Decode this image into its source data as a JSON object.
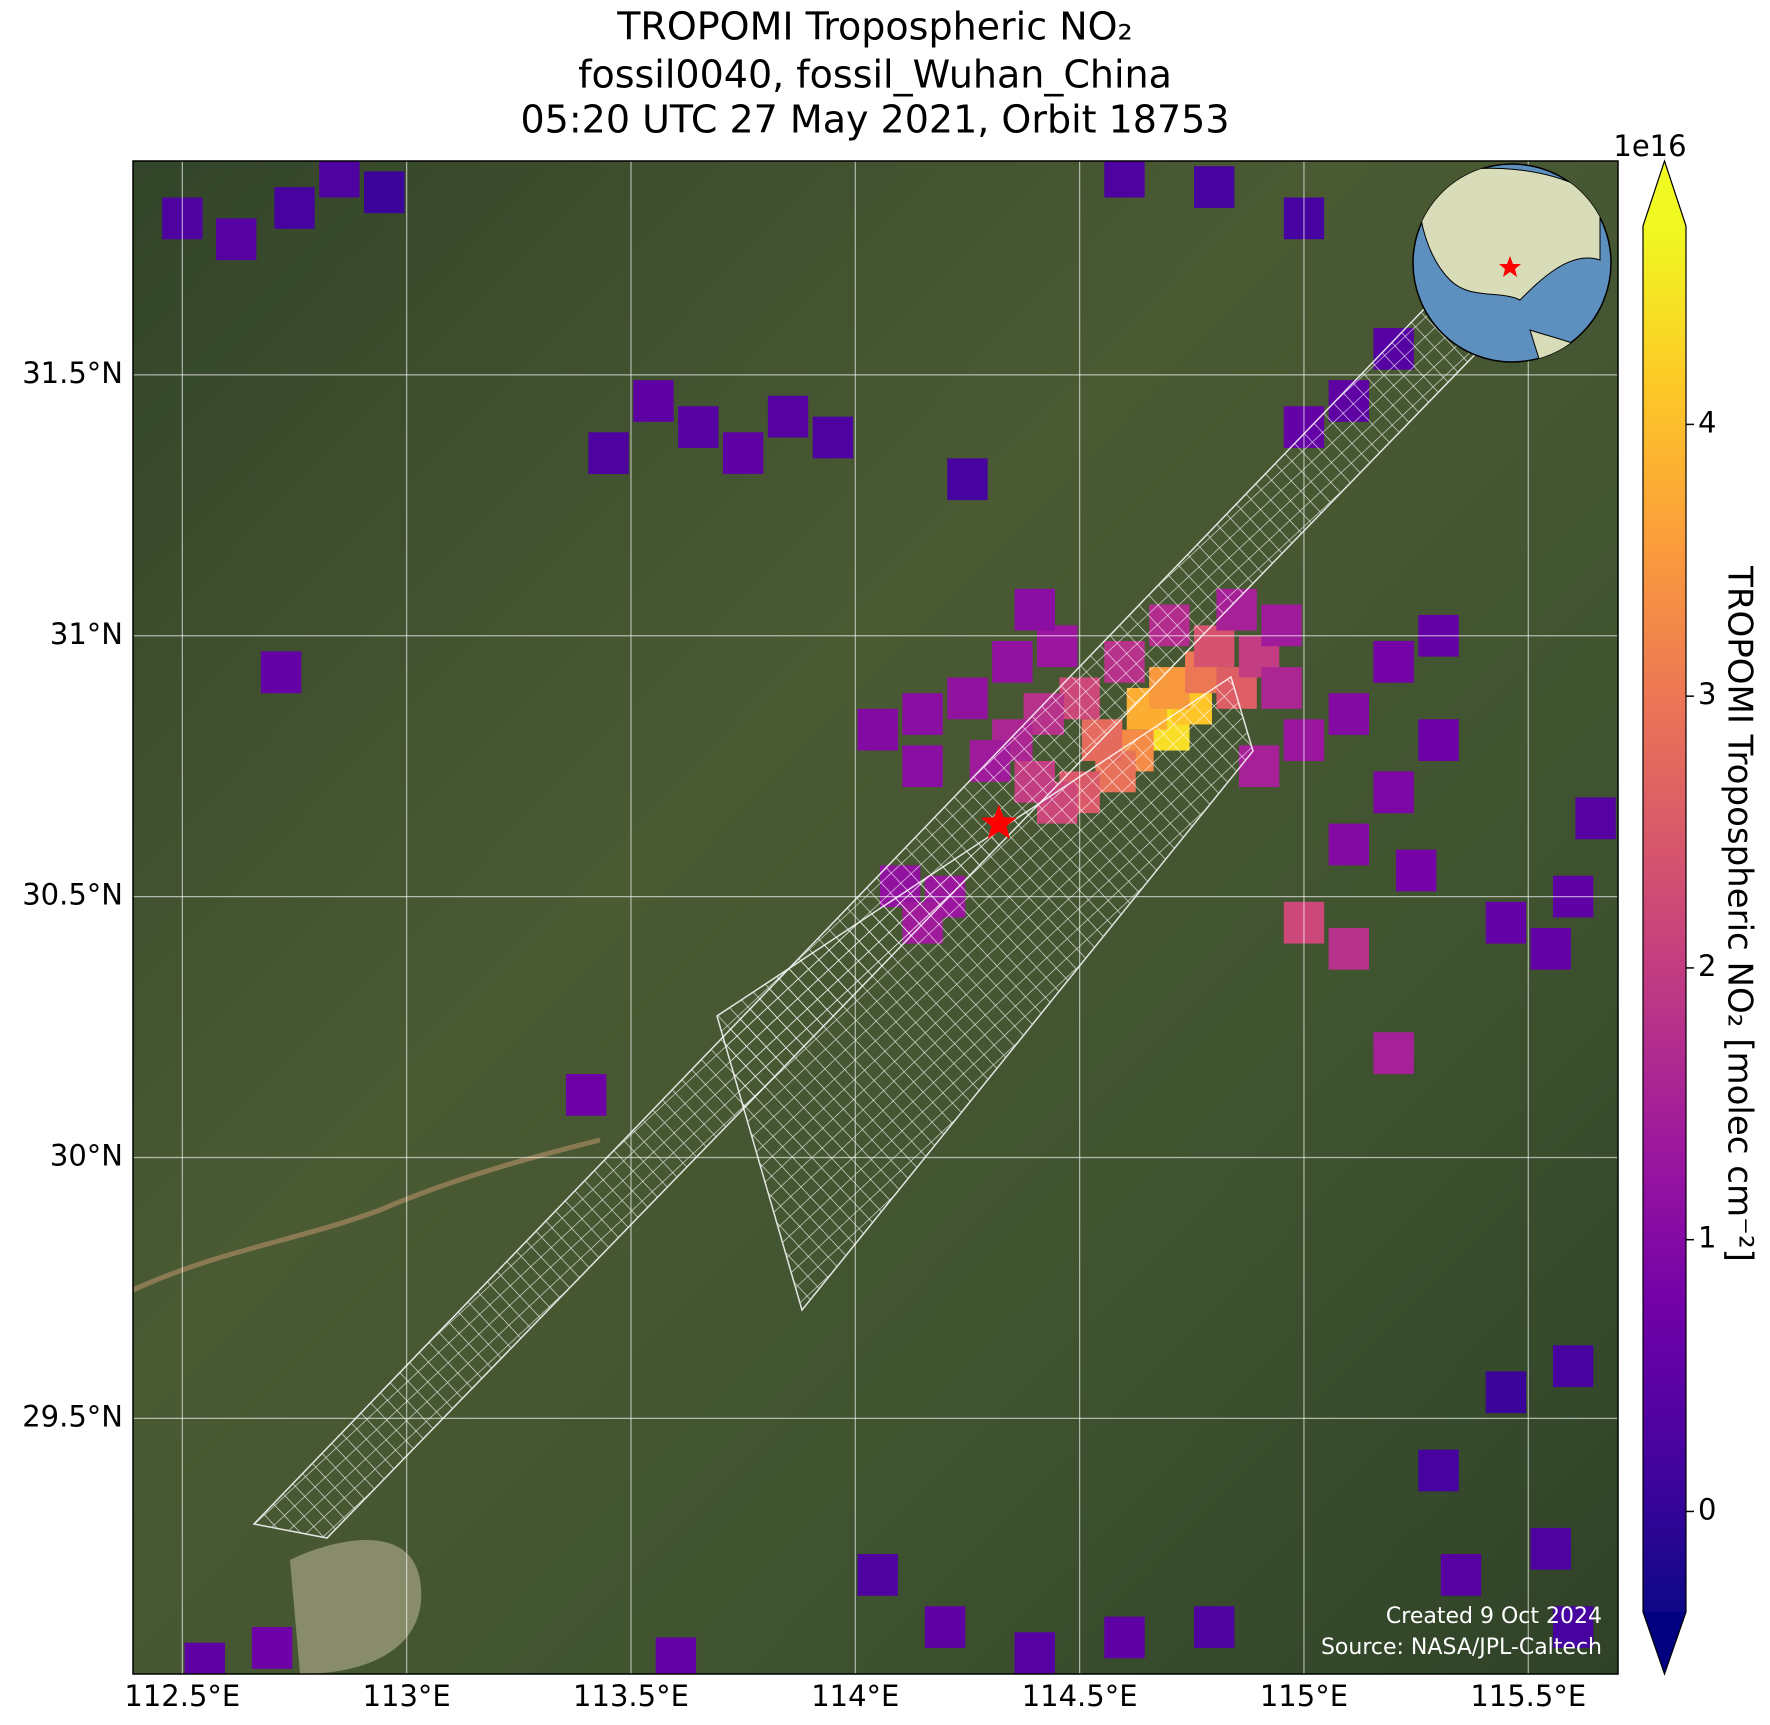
{
  "chart_data": {
    "type": "map",
    "title": [
      "TROPOMI Tropospheric NO₂",
      "fossil0040, fossil_Wuhan_China",
      "05:20 UTC 27 May 2021, Orbit 18753"
    ],
    "xlim": [
      112.39,
      115.7
    ],
    "ylim": [
      29.01,
      31.91
    ],
    "xticks": [
      {
        "value": 112.5,
        "label": "112.5°E"
      },
      {
        "value": 113,
        "label": "113°E"
      },
      {
        "value": 113.5,
        "label": "113.5°E"
      },
      {
        "value": 114,
        "label": "114°E"
      },
      {
        "value": 114.5,
        "label": "114.5°E"
      },
      {
        "value": 115,
        "label": "115°E"
      },
      {
        "value": 115.5,
        "label": "115.5°E"
      }
    ],
    "yticks": [
      {
        "value": 29.5,
        "label": "29.5°N"
      },
      {
        "value": 30,
        "label": "30°N"
      },
      {
        "value": 30.5,
        "label": "30.5°N"
      },
      {
        "value": 31,
        "label": "31°N"
      },
      {
        "value": 31.5,
        "label": "31.5°N"
      }
    ],
    "grid": true,
    "colormap": "plasma",
    "colorbar": {
      "label": "TROPOMI Tropospheric NO₂ [molec cm⁻²]",
      "offset_label": "1e16",
      "lim": [
        -0.37,
        4.73
      ],
      "ticks": [
        0,
        1,
        2,
        3,
        4
      ],
      "extend": "both"
    },
    "site": {
      "lon": 114.32,
      "lat": 30.64,
      "color": "#ff0000"
    },
    "cells": {
      "lon": [
        114.7,
        114.75,
        114.65,
        114.7,
        114.62,
        114.58,
        114.55,
        114.78,
        114.85,
        114.8,
        114.9,
        114.5,
        114.45,
        114.4,
        114.5,
        114.42,
        114.35,
        114.3,
        114.6,
        114.7,
        114.85,
        114.95,
        114.95,
        115.0,
        114.9,
        114.25,
        114.15,
        114.05,
        114.15,
        114.35,
        114.45,
        114.4,
        114.2,
        114.1,
        114.15,
        115.0,
        115.1,
        115.2,
        115.1,
        115.2,
        115.1,
        115.2,
        115.3,
        115.25,
        115.45,
        115.55,
        115.6,
        115.65,
        115.3,
        112.5,
        112.62,
        112.75,
        112.85,
        112.95,
        113.55,
        113.65,
        113.75,
        113.85,
        113.45,
        113.95,
        114.25,
        115.1,
        115.0,
        115.2,
        114.6,
        114.8,
        115.0,
        112.72,
        113.4,
        114.05,
        114.2,
        114.4,
        114.6,
        114.8,
        113.6,
        112.7,
        112.55,
        115.3,
        115.45,
        115.6,
        115.55,
        115.35,
        115.6
      ],
      "lat": [
        30.82,
        30.87,
        30.86,
        30.9,
        30.78,
        30.74,
        30.8,
        30.93,
        30.9,
        30.98,
        30.96,
        30.7,
        30.68,
        30.72,
        30.88,
        30.85,
        30.8,
        30.76,
        30.95,
        31.02,
        31.05,
        31.02,
        30.9,
        30.8,
        30.75,
        30.88,
        30.85,
        30.82,
        30.75,
        30.95,
        30.98,
        31.05,
        30.5,
        30.52,
        30.45,
        30.45,
        30.4,
        30.2,
        30.6,
        30.7,
        30.85,
        30.95,
        30.8,
        30.55,
        30.45,
        30.4,
        30.5,
        30.65,
        31.0,
        31.8,
        31.76,
        31.82,
        31.88,
        31.85,
        31.45,
        31.4,
        31.35,
        31.42,
        31.35,
        31.38,
        31.3,
        31.45,
        31.4,
        31.55,
        31.88,
        31.86,
        31.8,
        30.93,
        30.12,
        29.2,
        29.1,
        29.05,
        29.08,
        29.1,
        29.04,
        29.06,
        29.03,
        29.4,
        29.55,
        29.6,
        29.25,
        29.2,
        29.1
      ],
      "values": [
        4.4,
        4.1,
        3.8,
        3.5,
        3.3,
        2.9,
        2.8,
        3.0,
        2.6,
        2.4,
        2.0,
        2.5,
        2.2,
        2.0,
        2.2,
        1.8,
        1.6,
        1.4,
        1.8,
        1.7,
        1.5,
        1.4,
        1.6,
        1.3,
        1.5,
        1.2,
        1.1,
        1.0,
        1.1,
        1.2,
        1.3,
        1.1,
        1.3,
        1.2,
        1.4,
        2.2,
        1.8,
        1.5,
        1.0,
        0.9,
        1.0,
        0.8,
        0.7,
        0.8,
        0.6,
        0.6,
        0.5,
        0.4,
        0.6,
        0.3,
        0.4,
        0.2,
        0.3,
        0.1,
        0.5,
        0.4,
        0.5,
        0.4,
        0.3,
        0.3,
        0.2,
        0.5,
        0.6,
        0.4,
        0.3,
        0.2,
        0.2,
        0.6,
        0.7,
        0.3,
        0.5,
        0.4,
        0.5,
        0.3,
        0.6,
        0.7,
        0.5,
        0.2,
        0.1,
        0.2,
        0.3,
        0.4,
        0.2
      ]
    },
    "annotations": [
      "Created 9 Oct 2024",
      "Source: NASA/JPL-Caltech"
    ]
  }
}
